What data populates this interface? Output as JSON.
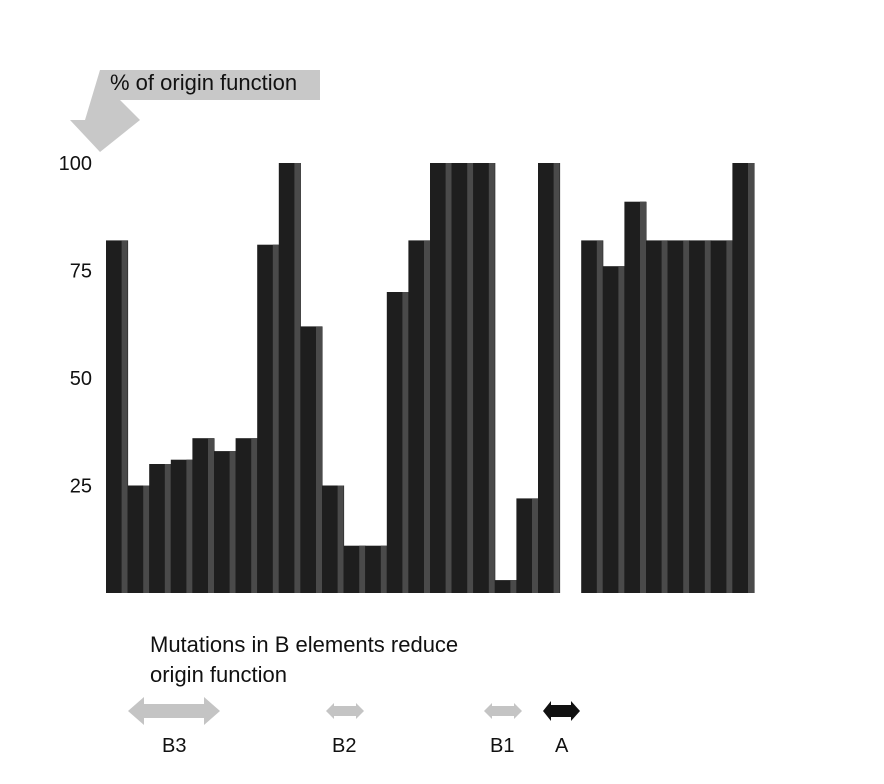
{
  "chart_data": {
    "type": "bar",
    "ylabel": "% of origin function",
    "yticks": [
      25,
      50,
      75,
      100
    ],
    "ylim": [
      0,
      100
    ],
    "values": [
      82,
      25,
      30,
      31,
      36,
      33,
      36,
      81,
      100,
      62,
      25,
      11,
      11,
      70,
      82,
      100,
      100,
      100,
      3,
      22,
      100,
      null,
      82,
      76,
      91,
      82,
      82,
      82,
      82,
      100
    ],
    "colors": {
      "bar": "#1e1e1e",
      "bar_shade": "#4a4a4a",
      "arrow_light": "#c4c4c4",
      "arrow_dark": "#111111"
    }
  },
  "caption": {
    "line1": "Mutations in B elements reduce",
    "line2": "origin function"
  },
  "elements": [
    "B3",
    "B2",
    "B1",
    "A"
  ]
}
